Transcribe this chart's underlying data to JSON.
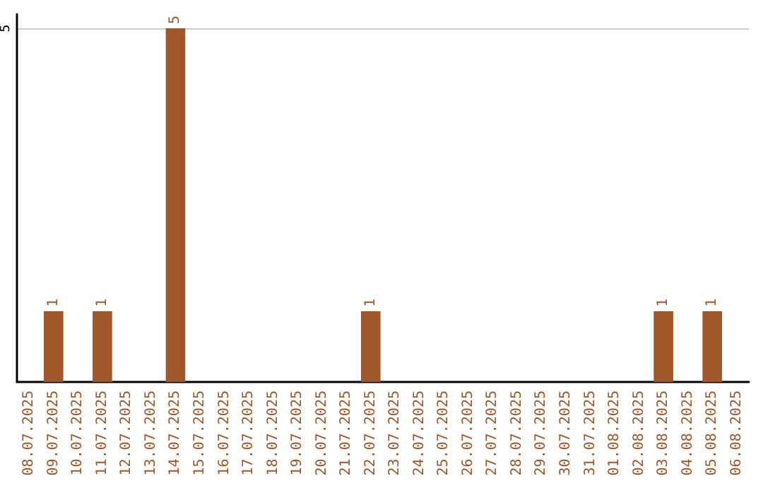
{
  "chart_data": {
    "type": "bar",
    "categories": [
      "08.07.2025",
      "09.07.2025",
      "10.07.2025",
      "11.07.2025",
      "12.07.2025",
      "13.07.2025",
      "14.07.2025",
      "15.07.2025",
      "16.07.2025",
      "17.07.2025",
      "18.07.2025",
      "19.07.2025",
      "20.07.2025",
      "21.07.2025",
      "22.07.2025",
      "23.07.2025",
      "24.07.2025",
      "25.07.2025",
      "26.07.2025",
      "27.07.2025",
      "28.07.2025",
      "29.07.2025",
      "30.07.2025",
      "31.07.2025",
      "01.08.2025",
      "02.08.2025",
      "03.08.2025",
      "04.08.2025",
      "05.08.2025",
      "06.08.2025"
    ],
    "values": [
      0,
      1,
      0,
      1,
      0,
      0,
      5,
      0,
      0,
      0,
      0,
      0,
      0,
      0,
      1,
      0,
      0,
      0,
      0,
      0,
      0,
      0,
      0,
      0,
      0,
      0,
      1,
      0,
      1,
      0
    ],
    "value_labels": [
      null,
      "1",
      null,
      "1",
      null,
      null,
      "5",
      null,
      null,
      null,
      null,
      null,
      null,
      null,
      "1",
      null,
      null,
      null,
      null,
      null,
      null,
      null,
      null,
      null,
      null,
      null,
      "1",
      null,
      "1",
      null
    ],
    "color": "#a0582a",
    "ylim": [
      0,
      5.2
    ],
    "yticks": [
      5
    ],
    "grid": "y"
  }
}
